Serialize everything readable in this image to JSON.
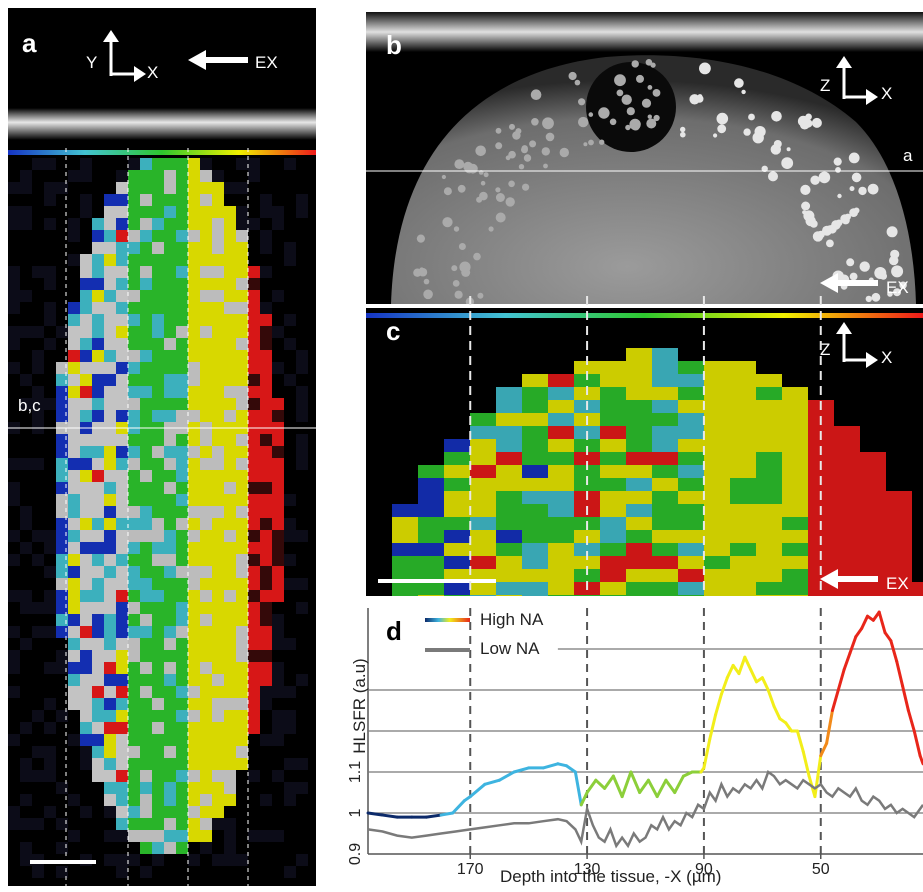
{
  "panel_a": {
    "label": "a",
    "axis_y": "Y",
    "axis_x": "X",
    "ex": "EX",
    "cut": "b,c"
  },
  "panel_b": {
    "label": "b",
    "axis_z": "Z",
    "axis_x": "X",
    "ex": "EX",
    "cut": "a"
  },
  "panel_c": {
    "label": "c",
    "axis_z": "Z",
    "axis_x": "X",
    "ex": "EX"
  },
  "colors": {
    "blue": "#1533c4",
    "cyan": "#43c3d2",
    "green": "#2ec82e",
    "yellow": "#f0f000",
    "red": "#ee1a1a"
  },
  "chart_data": {
    "type": "line",
    "panel_label": "d",
    "xlabel": "Depth into the tissue, -X (µm)",
    "ylabel": "HLSFR (a.u)",
    "x_ticks": [
      "170",
      "130",
      "90",
      "50"
    ],
    "y_ticks": [
      "0.9",
      "1",
      "1.1"
    ],
    "xlim": [
      205,
      15
    ],
    "ylim": [
      0.9,
      1.5
    ],
    "gridlines_y": [
      1.0,
      1.1,
      1.2,
      1.3,
      1.4
    ],
    "vlines_x": [
      170,
      130,
      90,
      50
    ],
    "legend_position": "top-left",
    "series": [
      {
        "name": "High NA",
        "x": [
          205,
          200,
          195,
          190,
          185,
          180,
          176,
          172,
          170,
          165,
          160,
          155,
          150,
          145,
          140,
          137,
          134,
          132,
          130,
          127,
          124,
          121,
          118,
          115,
          112,
          109,
          106,
          103,
          100,
          97,
          94,
          91,
          90,
          88,
          86,
          84,
          82,
          80,
          78,
          76,
          74,
          72,
          70,
          68,
          66,
          64,
          62,
          60,
          58,
          56,
          54,
          52,
          50,
          48,
          46,
          44,
          42,
          40,
          38,
          36,
          34,
          32,
          30,
          28,
          26,
          24,
          22,
          20,
          18,
          16,
          15
        ],
        "y": [
          1.0,
          0.995,
          0.99,
          0.99,
          0.99,
          0.995,
          1.0,
          1.03,
          1.04,
          1.07,
          1.08,
          1.1,
          1.11,
          1.11,
          1.12,
          1.115,
          1.1,
          1.02,
          1.05,
          1.08,
          1.06,
          1.09,
          1.04,
          1.1,
          1.05,
          1.08,
          1.04,
          1.08,
          1.05,
          1.09,
          1.1,
          1.1,
          1.11,
          1.18,
          1.24,
          1.29,
          1.33,
          1.36,
          1.34,
          1.38,
          1.35,
          1.32,
          1.33,
          1.3,
          1.26,
          1.23,
          1.22,
          1.2,
          1.2,
          1.15,
          1.09,
          1.04,
          1.14,
          1.17,
          1.25,
          1.3,
          1.35,
          1.39,
          1.43,
          1.45,
          1.48,
          1.47,
          1.49,
          1.44,
          1.42,
          1.37,
          1.31,
          1.25,
          1.2,
          1.14,
          1.12
        ]
      },
      {
        "name": "Low NA",
        "x": [
          205,
          200,
          195,
          190,
          185,
          180,
          175,
          170,
          165,
          160,
          155,
          150,
          145,
          140,
          137,
          134,
          132,
          130,
          128,
          126,
          124,
          122,
          120,
          118,
          116,
          114,
          112,
          110,
          108,
          106,
          104,
          102,
          100,
          98,
          96,
          94,
          92,
          90,
          88,
          86,
          84,
          82,
          80,
          78,
          76,
          74,
          72,
          70,
          68,
          66,
          64,
          62,
          60,
          58,
          56,
          54,
          52,
          50,
          48,
          46,
          44,
          42,
          40,
          38,
          36,
          34,
          32,
          30,
          28,
          26,
          24,
          22,
          20,
          18,
          16,
          15
        ],
        "y": [
          0.96,
          0.955,
          0.945,
          0.94,
          0.945,
          0.95,
          0.955,
          0.96,
          0.965,
          0.97,
          0.975,
          0.975,
          0.98,
          0.985,
          0.98,
          0.96,
          0.93,
          1.01,
          0.97,
          0.94,
          0.93,
          0.96,
          0.92,
          0.94,
          0.92,
          0.95,
          0.93,
          0.94,
          0.97,
          0.96,
          0.99,
          0.96,
          0.98,
          0.97,
          1.0,
          0.99,
          1.02,
          1.01,
          1.05,
          1.03,
          1.07,
          1.04,
          1.06,
          1.05,
          1.07,
          1.06,
          1.08,
          1.06,
          1.1,
          1.09,
          1.07,
          1.08,
          1.07,
          1.06,
          1.08,
          1.07,
          1.06,
          1.07,
          1.05,
          1.04,
          1.06,
          1.05,
          1.04,
          1.06,
          1.03,
          1.02,
          1.04,
          1.03,
          1.01,
          1.02,
          1.0,
          1.01,
          1.0,
          0.99,
          1.01,
          1.02
        ]
      }
    ]
  }
}
